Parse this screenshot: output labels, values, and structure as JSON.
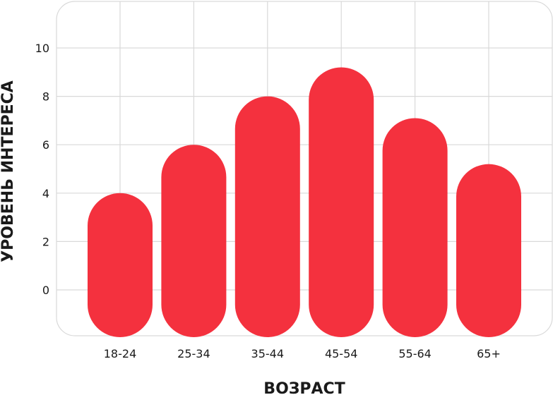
{
  "chart_data": {
    "type": "bar",
    "categories": [
      "18-24",
      "25-34",
      "35-44",
      "45-54",
      "55-64",
      "65+"
    ],
    "values": [
      4,
      6,
      8,
      9.2,
      7.1,
      5.2
    ],
    "xlabel": "ВОЗРАСТ",
    "ylabel": "УРОВЕНЬ ИНТЕРЕСА",
    "yticks": [
      "0",
      "2",
      "4",
      "6",
      "8",
      "10"
    ],
    "ylim": [
      0,
      10
    ],
    "grid": true,
    "bar_color": "#f4313e",
    "grid_color": "#d9d9d9"
  }
}
